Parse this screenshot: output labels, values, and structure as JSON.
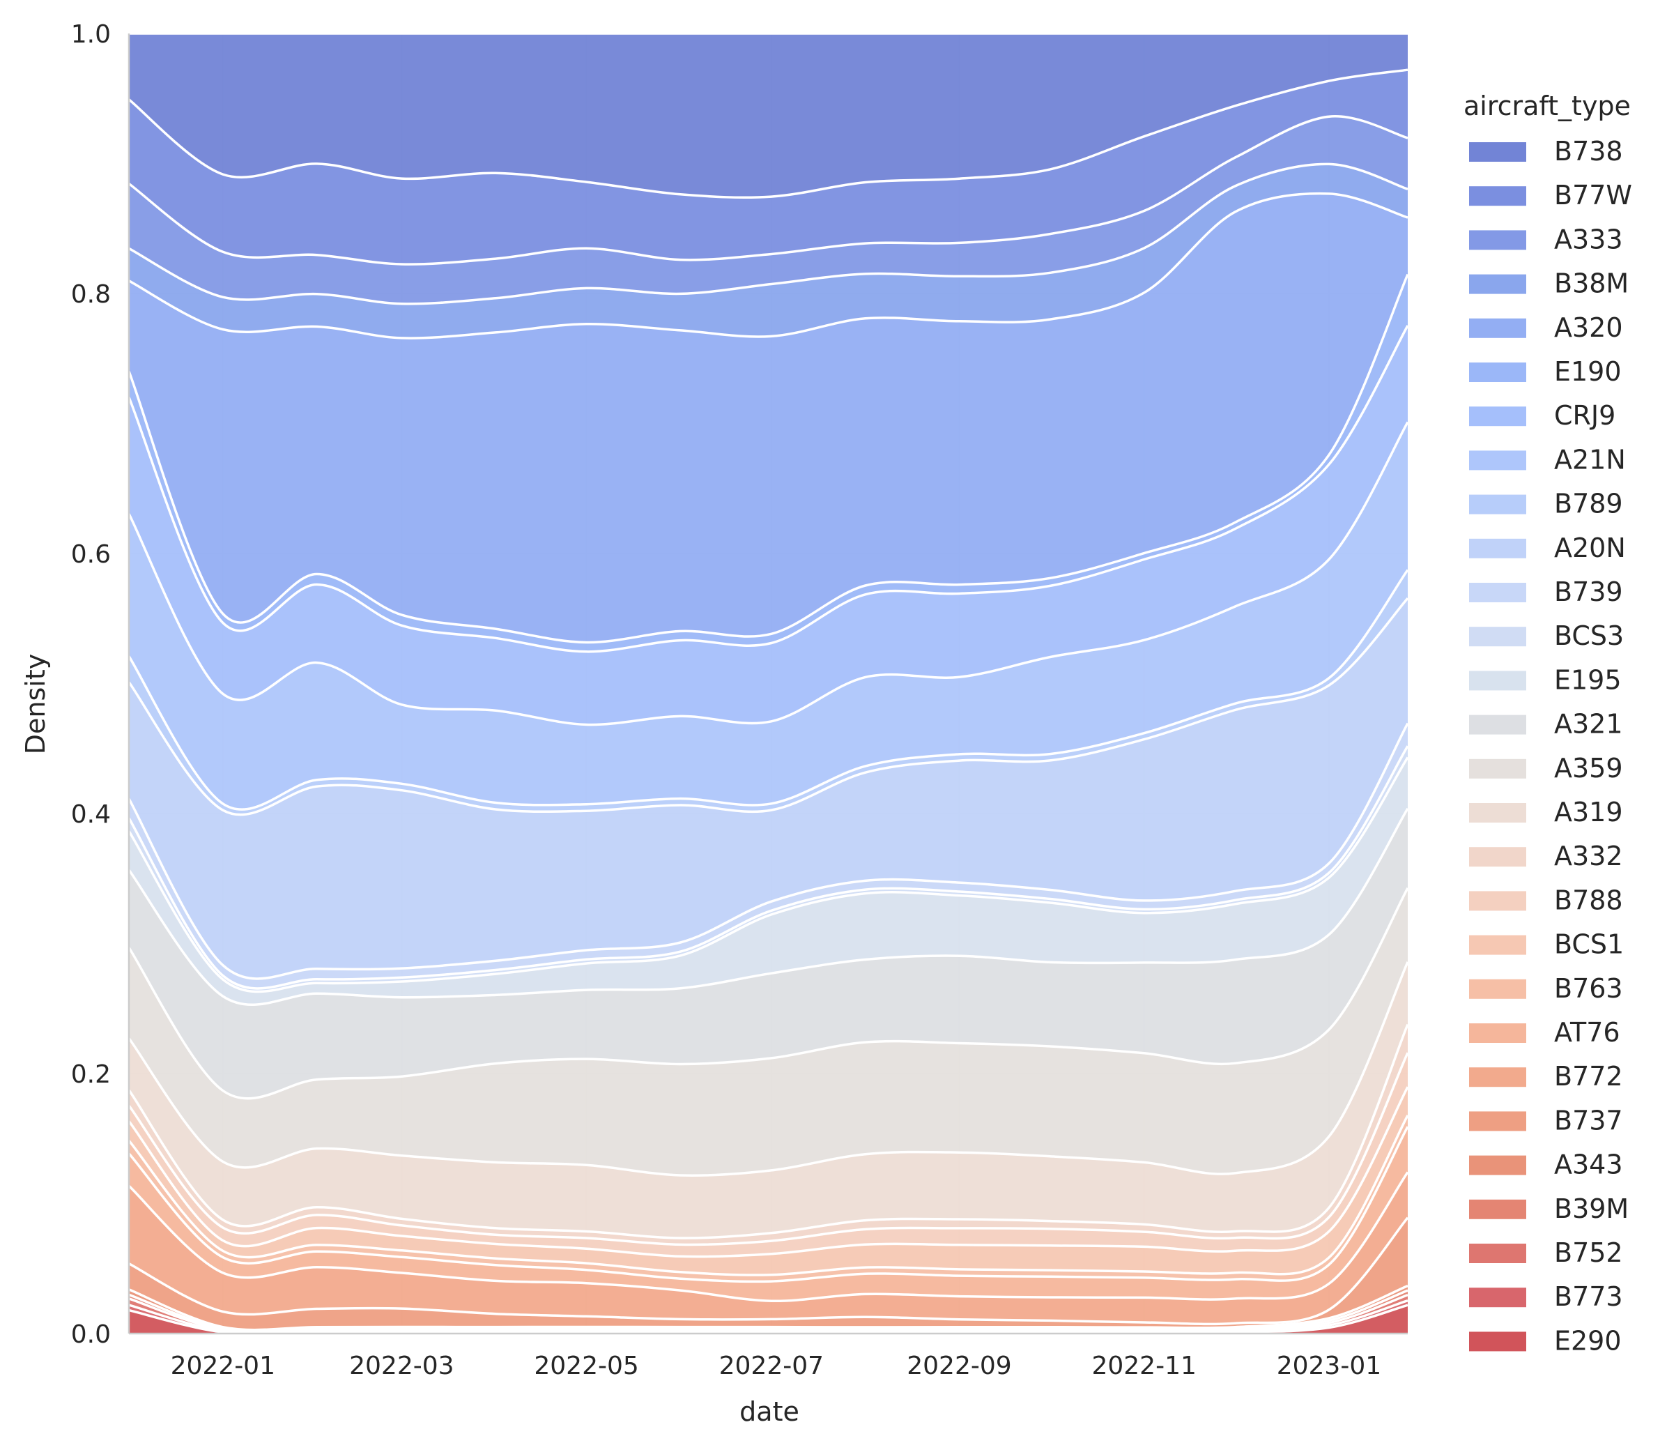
{
  "chart_data": {
    "type": "area",
    "stacked": true,
    "normalized": true,
    "title": "",
    "xlabel": "date",
    "ylabel": "Density",
    "ylim": [
      0,
      1
    ],
    "xlim": [
      "2021-12-01",
      "2023-01-27"
    ],
    "x_ticks": [
      {
        "date": "2022-01-01",
        "label": "2022-01"
      },
      {
        "date": "2022-03-01",
        "label": "2022-03"
      },
      {
        "date": "2022-05-01",
        "label": "2022-05"
      },
      {
        "date": "2022-07-01",
        "label": "2022-07"
      },
      {
        "date": "2022-09-01",
        "label": "2022-09"
      },
      {
        "date": "2022-11-01",
        "label": "2022-11"
      },
      {
        "date": "2023-01-01",
        "label": "2023-01"
      }
    ],
    "y_ticks": [
      {
        "value": 0.0,
        "label": "0.0"
      },
      {
        "value": 0.2,
        "label": "0.2"
      },
      {
        "value": 0.4,
        "label": "0.4"
      },
      {
        "value": 0.6,
        "label": "0.6"
      },
      {
        "value": 0.8,
        "label": "0.8"
      },
      {
        "value": 1.0,
        "label": "1.0"
      }
    ],
    "grid": true,
    "legend_title": "aircraft_type",
    "legend_position": "right",
    "x": [
      "2021-12-01",
      "2022-01-01",
      "2022-02-01",
      "2022-03-01",
      "2022-04-01",
      "2022-05-01",
      "2022-06-01",
      "2022-07-01",
      "2022-08-01",
      "2022-09-01",
      "2022-10-01",
      "2022-11-01",
      "2022-12-01",
      "2023-01-01",
      "2023-01-27"
    ],
    "series": [
      {
        "name": "E290",
        "color": "#d1545a",
        "values": [
          0.018,
          0.001,
          0.001,
          0.001,
          0.001,
          0.001,
          0.001,
          0.001,
          0.001,
          0.001,
          0.001,
          0.001,
          0.001,
          0.005,
          0.025
        ]
      },
      {
        "name": "B773",
        "color": "#d8666c",
        "values": [
          0.004,
          0.001,
          0.001,
          0.001,
          0.001,
          0.001,
          0.001,
          0.001,
          0.001,
          0.001,
          0.001,
          0.001,
          0.001,
          0.002,
          0.004
        ]
      },
      {
        "name": "B752",
        "color": "#de7670",
        "values": [
          0.005,
          0.001,
          0.001,
          0.001,
          0.001,
          0.001,
          0.001,
          0.001,
          0.001,
          0.001,
          0.001,
          0.001,
          0.001,
          0.002,
          0.005
        ]
      },
      {
        "name": "B39M",
        "color": "#e48573",
        "values": [
          0.003,
          0.001,
          0.001,
          0.001,
          0.001,
          0.001,
          0.001,
          0.001,
          0.001,
          0.001,
          0.001,
          0.001,
          0.001,
          0.002,
          0.004
        ]
      },
      {
        "name": "A343",
        "color": "#e99379",
        "values": [
          0.004,
          0.001,
          0.001,
          0.001,
          0.001,
          0.001,
          0.001,
          0.001,
          0.001,
          0.001,
          0.001,
          0.001,
          0.001,
          0.002,
          0.004
        ]
      },
      {
        "name": "B737",
        "color": "#ee9f83",
        "values": [
          0.02,
          0.012,
          0.014,
          0.014,
          0.01,
          0.008,
          0.006,
          0.006,
          0.008,
          0.006,
          0.005,
          0.004,
          0.003,
          0.007,
          0.06
        ]
      },
      {
        "name": "B772",
        "color": "#f2aa8d",
        "values": [
          0.06,
          0.03,
          0.032,
          0.027,
          0.025,
          0.025,
          0.022,
          0.014,
          0.018,
          0.018,
          0.018,
          0.02,
          0.019,
          0.022,
          0.04
        ]
      },
      {
        "name": "AT76",
        "color": "#f5b69b",
        "values": [
          0.025,
          0.012,
          0.012,
          0.012,
          0.012,
          0.01,
          0.009,
          0.015,
          0.016,
          0.016,
          0.016,
          0.016,
          0.015,
          0.016,
          0.04
        ]
      },
      {
        "name": "B763",
        "color": "#f6bfa6",
        "values": [
          0.01,
          0.005,
          0.005,
          0.005,
          0.005,
          0.005,
          0.005,
          0.005,
          0.005,
          0.005,
          0.005,
          0.005,
          0.005,
          0.006,
          0.01
        ]
      },
      {
        "name": "BCS1",
        "color": "#f6c8b3",
        "values": [
          0.015,
          0.008,
          0.013,
          0.011,
          0.011,
          0.011,
          0.012,
          0.016,
          0.018,
          0.019,
          0.019,
          0.02,
          0.017,
          0.022,
          0.025
        ]
      },
      {
        "name": "B788",
        "color": "#f4d0c0",
        "values": [
          0.012,
          0.01,
          0.01,
          0.008,
          0.007,
          0.008,
          0.009,
          0.01,
          0.012,
          0.013,
          0.013,
          0.012,
          0.01,
          0.012,
          0.03
        ]
      },
      {
        "name": "A332",
        "color": "#f1d6ca",
        "values": [
          0.012,
          0.006,
          0.006,
          0.005,
          0.005,
          0.005,
          0.005,
          0.006,
          0.007,
          0.007,
          0.006,
          0.006,
          0.005,
          0.008,
          0.025
        ]
      },
      {
        "name": "A319",
        "color": "#edddd5",
        "values": [
          0.04,
          0.045,
          0.045,
          0.048,
          0.05,
          0.05,
          0.048,
          0.048,
          0.052,
          0.052,
          0.05,
          0.05,
          0.045,
          0.06,
          0.055
        ]
      },
      {
        "name": "A359",
        "color": "#e5e0dd",
        "values": [
          0.07,
          0.055,
          0.053,
          0.06,
          0.075,
          0.08,
          0.085,
          0.086,
          0.088,
          0.085,
          0.085,
          0.088,
          0.085,
          0.09,
          0.065
        ]
      },
      {
        "name": "A321",
        "color": "#dddfe3",
        "values": [
          0.06,
          0.073,
          0.066,
          0.06,
          0.052,
          0.052,
          0.058,
          0.065,
          0.065,
          0.068,
          0.065,
          0.073,
          0.08,
          0.08,
          0.07
        ]
      },
      {
        "name": "E195",
        "color": "#d8e2ee",
        "values": [
          0.03,
          0.013,
          0.008,
          0.012,
          0.016,
          0.02,
          0.025,
          0.045,
          0.052,
          0.047,
          0.046,
          0.04,
          0.043,
          0.048,
          0.045
        ]
      },
      {
        "name": "BCS3",
        "color": "#d0dcf4",
        "values": [
          0.01,
          0.003,
          0.003,
          0.003,
          0.003,
          0.003,
          0.003,
          0.003,
          0.003,
          0.003,
          0.003,
          0.003,
          0.003,
          0.004,
          0.01
        ]
      },
      {
        "name": "B739",
        "color": "#c8d7f8",
        "values": [
          0.015,
          0.008,
          0.008,
          0.007,
          0.007,
          0.007,
          0.007,
          0.007,
          0.007,
          0.007,
          0.007,
          0.007,
          0.007,
          0.008,
          0.02
        ]
      },
      {
        "name": "A20N",
        "color": "#c0d2f9",
        "values": [
          0.09,
          0.12,
          0.14,
          0.135,
          0.115,
          0.105,
          0.105,
          0.07,
          0.085,
          0.095,
          0.1,
          0.13,
          0.14,
          0.15,
          0.11
        ]
      },
      {
        "name": "B789",
        "color": "#b7cdfa",
        "values": [
          0.02,
          0.005,
          0.005,
          0.005,
          0.005,
          0.005,
          0.005,
          0.005,
          0.005,
          0.005,
          0.005,
          0.005,
          0.005,
          0.006,
          0.025
        ]
      },
      {
        "name": "A21N",
        "color": "#aec6fb",
        "values": [
          0.11,
          0.085,
          0.09,
          0.06,
          0.07,
          0.06,
          0.063,
          0.063,
          0.07,
          0.06,
          0.075,
          0.075,
          0.075,
          0.1,
          0.13
        ]
      },
      {
        "name": "CRJ9",
        "color": "#a5bffb",
        "values": [
          0.09,
          0.055,
          0.06,
          0.06,
          0.055,
          0.055,
          0.058,
          0.06,
          0.065,
          0.065,
          0.055,
          0.065,
          0.06,
          0.08,
          0.085
        ]
      },
      {
        "name": "E190",
        "color": "#9bb7f8",
        "values": [
          0.02,
          0.007,
          0.008,
          0.008,
          0.007,
          0.007,
          0.007,
          0.007,
          0.007,
          0.007,
          0.006,
          0.005,
          0.005,
          0.008,
          0.045
        ]
      },
      {
        "name": "A320",
        "color": "#93aef3",
        "values": [
          0.07,
          0.22,
          0.19,
          0.21,
          0.225,
          0.24,
          0.23,
          0.228,
          0.21,
          0.205,
          0.2,
          0.21,
          0.24,
          0.22,
          0.05
        ]
      },
      {
        "name": "B38M",
        "color": "#8aa6ed",
        "values": [
          0.025,
          0.025,
          0.025,
          0.026,
          0.026,
          0.027,
          0.028,
          0.04,
          0.035,
          0.035,
          0.036,
          0.036,
          0.02,
          0.025,
          0.025
        ]
      },
      {
        "name": "A333",
        "color": "#8399e6",
        "values": [
          0.05,
          0.035,
          0.03,
          0.03,
          0.03,
          0.03,
          0.026,
          0.023,
          0.024,
          0.026,
          0.03,
          0.03,
          0.022,
          0.04,
          0.045
        ]
      },
      {
        "name": "B77W",
        "color": "#7b8fe0",
        "values": [
          0.065,
          0.06,
          0.07,
          0.065,
          0.065,
          0.05,
          0.05,
          0.044,
          0.048,
          0.05,
          0.05,
          0.06,
          0.04,
          0.03,
          0.06
        ]
      },
      {
        "name": "B738",
        "color": "#7284d6",
        "values": [
          0.051,
          0.109,
          0.1,
          0.11,
          0.106,
          0.112,
          0.123,
          0.125,
          0.117,
          0.113,
          0.105,
          0.083,
          0.056,
          0.04,
          0.032
        ]
      }
    ]
  }
}
